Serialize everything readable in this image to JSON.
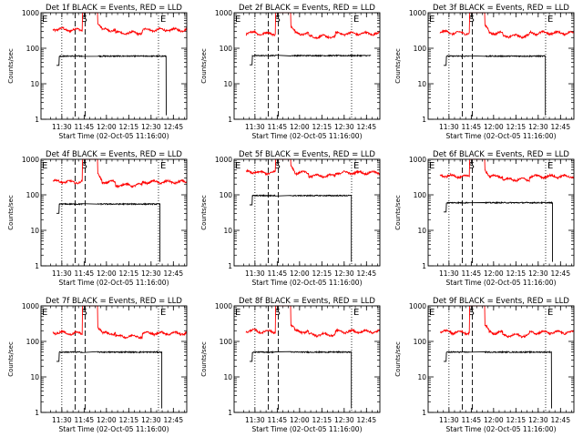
{
  "chart_data": [
    {
      "type": "line",
      "title": "Det 1f BLACK = Events, RED = LLD",
      "xlabel": "Start Time (02-Oct-05 11:16:00)",
      "ylabel": "Counts/sec",
      "xlim": [
        "11:16",
        "12:54"
      ],
      "ylim": [
        1,
        1000
      ],
      "yscale": "log",
      "xticks": [
        "11:30",
        "11:45",
        "12:00",
        "12:15",
        "12:30",
        "12:45"
      ],
      "yticks": [
        "1",
        "10",
        "100",
        "1000"
      ],
      "markers": [
        {
          "label": "E",
          "time": "11:16"
        },
        {
          "label": "S",
          "time": "11:42"
        },
        {
          "label": "E",
          "time": "12:35"
        }
      ],
      "series": [
        {
          "color": "#ff0000",
          "level": 330,
          "spike": [
            11.73,
            11.9
          ]
        },
        {
          "color": "#000000",
          "level": 60,
          "drop": 12.67
        }
      ]
    },
    {
      "type": "line",
      "title": "Det 2f BLACK = Events, RED = LLD",
      "xlabel": "Start Time (02-Oct-05 11:16:00)",
      "ylabel": "Counts/sec",
      "xlim": [
        "11:16",
        "12:54"
      ],
      "ylim": [
        1,
        1000
      ],
      "yscale": "log",
      "xticks": [
        "11:30",
        "11:45",
        "12:00",
        "12:15",
        "12:30",
        "12:45"
      ],
      "yticks": [
        "1",
        "10",
        "100",
        "1000"
      ],
      "markers": [
        {
          "label": "E",
          "time": "11:16"
        },
        {
          "label": "S",
          "time": "11:42"
        },
        {
          "label": "E",
          "time": "12:35"
        }
      ],
      "series": [
        {
          "color": "#ff0000",
          "level": 260,
          "spike": [
            11.73,
            11.9
          ]
        },
        {
          "color": "#000000",
          "level": 62,
          "drop": null
        }
      ]
    },
    {
      "type": "line",
      "title": "Det 3f BLACK = Events, RED = LLD",
      "xlabel": "Start Time (02-Oct-05 11:16:00)",
      "ylabel": "Counts/sec",
      "xlim": [
        "11:16",
        "12:54"
      ],
      "ylim": [
        1,
        1000
      ],
      "yscale": "log",
      "xticks": [
        "11:30",
        "11:45",
        "12:00",
        "12:15",
        "12:30",
        "12:45"
      ],
      "yticks": [
        "1",
        "10",
        "100",
        "1000"
      ],
      "markers": [
        {
          "label": "E",
          "time": "11:16"
        },
        {
          "label": "S",
          "time": "11:42"
        },
        {
          "label": "E",
          "time": "12:35"
        }
      ],
      "series": [
        {
          "color": "#ff0000",
          "level": 270,
          "spike": [
            11.73,
            11.9
          ]
        },
        {
          "color": "#000000",
          "level": 60,
          "drop": 12.58
        }
      ]
    },
    {
      "type": "line",
      "title": "Det 4f BLACK = Events, RED = LLD",
      "xlabel": "Start Time (02-Oct-05 11:16:00)",
      "ylabel": "Counts/sec",
      "xlim": [
        "11:16",
        "12:54"
      ],
      "ylim": [
        1,
        1000
      ],
      "yscale": "log",
      "xticks": [
        "11:30",
        "11:45",
        "12:00",
        "12:15",
        "12:30",
        "12:45"
      ],
      "yticks": [
        "1",
        "10",
        "100",
        "1000"
      ],
      "markers": [
        {
          "label": "E",
          "time": "11:16"
        },
        {
          "label": "S",
          "time": "11:42"
        },
        {
          "label": "E",
          "time": "12:35"
        }
      ],
      "series": [
        {
          "color": "#ff0000",
          "level": 230,
          "spike": [
            11.73,
            11.9
          ]
        },
        {
          "color": "#000000",
          "level": 55,
          "drop": 12.6
        }
      ]
    },
    {
      "type": "line",
      "title": "Det 5f BLACK = Events, RED = LLD",
      "xlabel": "Start Time (02-Oct-05 11:16:00)",
      "ylabel": "Counts/sec",
      "xlim": [
        "11:16",
        "12:54"
      ],
      "ylim": [
        1,
        1000
      ],
      "yscale": "log",
      "xticks": [
        "11:30",
        "11:45",
        "12:00",
        "12:15",
        "12:30",
        "12:45"
      ],
      "yticks": [
        "1",
        "10",
        "100",
        "1000"
      ],
      "markers": [
        {
          "label": "E",
          "time": "11:16"
        },
        {
          "label": "S",
          "time": "11:42"
        },
        {
          "label": "E",
          "time": "12:35"
        }
      ],
      "series": [
        {
          "color": "#ff0000",
          "level": 420,
          "spike": [
            11.73,
            11.9
          ]
        },
        {
          "color": "#000000",
          "level": 95,
          "drop": 12.58
        }
      ]
    },
    {
      "type": "line",
      "title": "Det 6f BLACK = Events, RED = LLD",
      "xlabel": "Start Time (02-Oct-05 11:16:00)",
      "ylabel": "Counts/sec",
      "xlim": [
        "11:16",
        "12:54"
      ],
      "ylim": [
        1,
        1000
      ],
      "yscale": "log",
      "xticks": [
        "11:30",
        "11:45",
        "12:00",
        "12:15",
        "12:30",
        "12:45"
      ],
      "yticks": [
        "1",
        "10",
        "100",
        "1000"
      ],
      "markers": [
        {
          "label": "E",
          "time": "11:16"
        },
        {
          "label": "S",
          "time": "11:42"
        },
        {
          "label": "E",
          "time": "12:35"
        }
      ],
      "series": [
        {
          "color": "#ff0000",
          "level": 330,
          "spike": [
            11.73,
            11.9
          ]
        },
        {
          "color": "#000000",
          "level": 60,
          "drop": 12.66
        }
      ]
    },
    {
      "type": "line",
      "title": "Det 7f BLACK = Events, RED = LLD",
      "xlabel": "Start Time (02-Oct-05 11:16:00)",
      "ylabel": "Counts/sec",
      "xlim": [
        "11:16",
        "12:54"
      ],
      "ylim": [
        1,
        1000
      ],
      "yscale": "log",
      "xticks": [
        "11:30",
        "11:45",
        "12:00",
        "12:15",
        "12:30",
        "12:45"
      ],
      "yticks": [
        "1",
        "10",
        "100",
        "1000"
      ],
      "markers": [
        {
          "label": "E",
          "time": "11:16"
        },
        {
          "label": "S",
          "time": "11:42"
        },
        {
          "label": "E",
          "time": "12:35"
        }
      ],
      "series": [
        {
          "color": "#ff0000",
          "level": 170,
          "spike": [
            11.73,
            11.9
          ]
        },
        {
          "color": "#000000",
          "level": 50,
          "drop": 12.62
        }
      ]
    },
    {
      "type": "line",
      "title": "Det 8f BLACK = Events, RED = LLD",
      "xlabel": "Start Time (02-Oct-05 11:16:00)",
      "ylabel": "Counts/sec",
      "xlim": [
        "11:16",
        "12:54"
      ],
      "ylim": [
        1,
        1000
      ],
      "yscale": "log",
      "xticks": [
        "11:30",
        "11:45",
        "12:00",
        "12:15",
        "12:30",
        "12:45"
      ],
      "yticks": [
        "1",
        "10",
        "100",
        "1000"
      ],
      "markers": [
        {
          "label": "E",
          "time": "11:16"
        },
        {
          "label": "S",
          "time": "11:42"
        },
        {
          "label": "E",
          "time": "12:35"
        }
      ],
      "series": [
        {
          "color": "#ff0000",
          "level": 190,
          "spike": [
            11.73,
            11.9
          ]
        },
        {
          "color": "#000000",
          "level": 50,
          "drop": 12.58
        }
      ]
    },
    {
      "type": "line",
      "title": "Det 9f BLACK = Events, RED = LLD",
      "xlabel": "Start Time (02-Oct-05 11:16:00)",
      "ylabel": "Counts/sec",
      "xlim": [
        "11:16",
        "12:54"
      ],
      "ylim": [
        1,
        1000
      ],
      "yscale": "log",
      "xticks": [
        "11:30",
        "11:45",
        "12:00",
        "12:15",
        "12:30",
        "12:45"
      ],
      "yticks": [
        "1",
        "10",
        "100",
        "1000"
      ],
      "markers": [
        {
          "label": "E",
          "time": "11:16"
        },
        {
          "label": "S",
          "time": "11:42"
        },
        {
          "label": "E",
          "time": "12:35"
        }
      ],
      "series": [
        {
          "color": "#ff0000",
          "level": 180,
          "spike": [
            11.73,
            11.9
          ]
        },
        {
          "color": "#000000",
          "level": 50,
          "drop": 12.65
        }
      ]
    }
  ]
}
